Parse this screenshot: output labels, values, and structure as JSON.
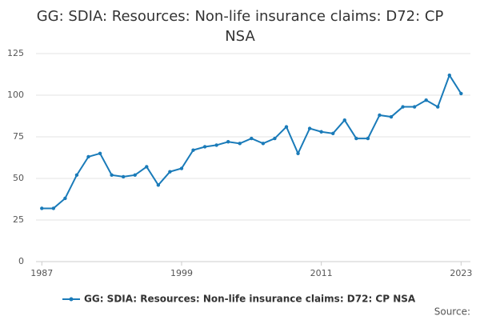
{
  "chart_data": {
    "type": "line",
    "title": "GG: SDIA: Resources: Non-life insurance claims: D72: CP NSA",
    "x": [
      1987,
      1988,
      1989,
      1990,
      1991,
      1992,
      1993,
      1994,
      1995,
      1996,
      1997,
      1998,
      1999,
      2000,
      2001,
      2002,
      2003,
      2004,
      2005,
      2006,
      2007,
      2008,
      2009,
      2010,
      2011,
      2012,
      2013,
      2014,
      2015,
      2016,
      2017,
      2018,
      2019,
      2020,
      2021,
      2022,
      2023
    ],
    "series": [
      {
        "name": "GG: SDIA: Resources: Non-life insurance claims: D72: CP NSA",
        "color": "#1a7bb9",
        "values": [
          32,
          32,
          38,
          52,
          63,
          65,
          52,
          51,
          52,
          57,
          46,
          54,
          56,
          67,
          69,
          70,
          72,
          71,
          74,
          71,
          74,
          81,
          65,
          80,
          78,
          77,
          85,
          74,
          74,
          88,
          87,
          93,
          93,
          97,
          93,
          112,
          101
        ]
      }
    ],
    "xlim": [
      1986.5,
      2023.8
    ],
    "xticks": [
      1987,
      1999,
      2011,
      2023
    ],
    "ylim": [
      0,
      125
    ],
    "yticks": [
      0,
      25,
      50,
      75,
      100,
      125
    ],
    "grid": true,
    "source": "Source:"
  }
}
